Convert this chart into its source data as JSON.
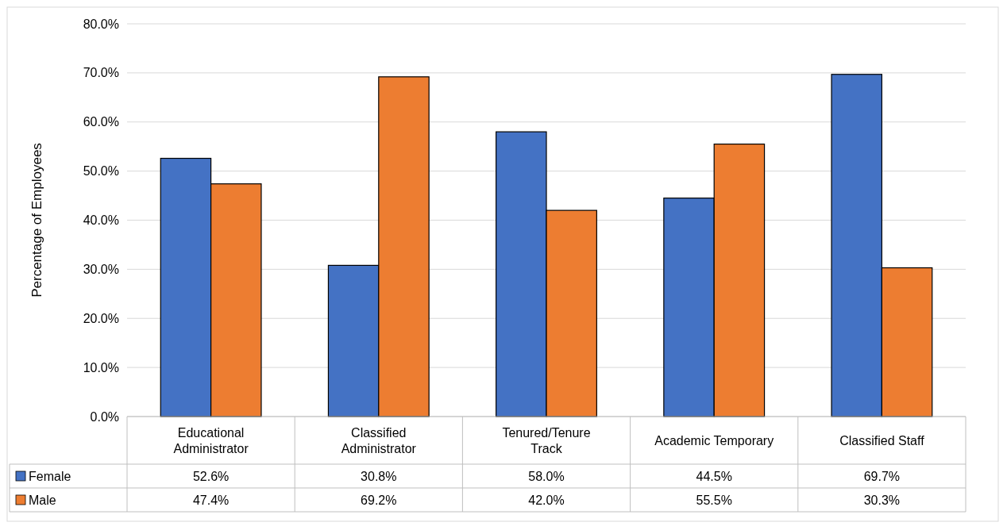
{
  "chart_data": {
    "type": "bar",
    "ylabel": "Percentage of Employees",
    "categories": [
      "Educational Administrator",
      "Classified Administrator",
      "Tenured/Tenure Track",
      "Academic Temporary",
      "Classified Staff"
    ],
    "series": [
      {
        "name": "Female",
        "color": "#4472c4",
        "values": [
          52.6,
          30.8,
          58.0,
          44.5,
          69.7
        ],
        "value_labels": [
          "52.6%",
          "30.8%",
          "58.0%",
          "44.5%",
          "69.7%"
        ]
      },
      {
        "name": "Male",
        "color": "#ed7d31",
        "values": [
          47.4,
          69.2,
          42.0,
          55.5,
          30.3
        ],
        "value_labels": [
          "47.4%",
          "69.2%",
          "42.0%",
          "55.5%",
          "30.3%"
        ]
      }
    ],
    "ylim": [
      0,
      80
    ],
    "yticks": [
      {
        "value": 0,
        "label": "0.0%"
      },
      {
        "value": 10,
        "label": "10.0%"
      },
      {
        "value": 20,
        "label": "20.0%"
      },
      {
        "value": 30,
        "label": "30.0%"
      },
      {
        "value": 40,
        "label": "40.0%"
      },
      {
        "value": 50,
        "label": "50.0%"
      },
      {
        "value": 60,
        "label": "60.0%"
      },
      {
        "value": 70,
        "label": "70.0%"
      },
      {
        "value": 80,
        "label": "80.0%"
      }
    ],
    "grid": "y",
    "legend": "bottom"
  }
}
